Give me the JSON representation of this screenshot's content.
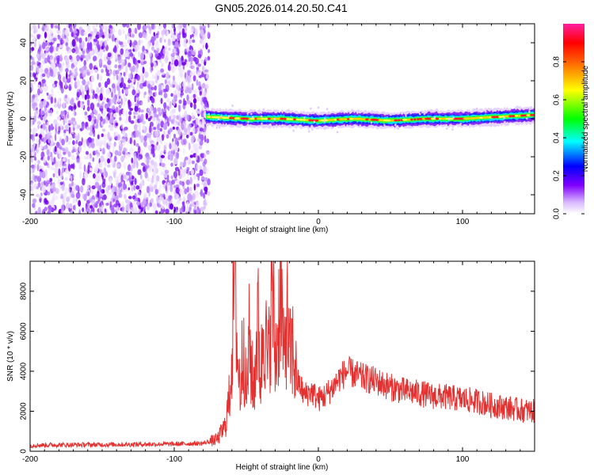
{
  "title": "GN05.2026.014.20.50.C41",
  "chart_data": [
    {
      "type": "heatmap",
      "xlabel": "Height of straight line (km)",
      "ylabel": "Frequency (Hz)",
      "xlim": [
        -200,
        150
      ],
      "ylim": [
        -50,
        50
      ],
      "xticks": [
        -200,
        -100,
        0,
        100
      ],
      "yticks": [
        -40,
        -20,
        0,
        20,
        40
      ],
      "colorbar": {
        "label": "Normalized spectral amplitude",
        "range": [
          0,
          1
        ],
        "ticks": [
          "0.0",
          "0.2",
          "0.4",
          "0.6",
          "0.8"
        ]
      },
      "noise_region_x": [
        -200,
        -76
      ],
      "signal_center_hz": [
        [
          -78,
          1
        ],
        [
          -50,
          0
        ],
        [
          -25,
          0
        ],
        [
          0,
          -1
        ],
        [
          25,
          0
        ],
        [
          50,
          -1
        ],
        [
          75,
          0
        ],
        [
          100,
          0
        ],
        [
          125,
          1
        ],
        [
          150,
          2
        ]
      ]
    },
    {
      "type": "line",
      "xlabel": "Height of straight line (km)",
      "ylabel": "SNR (10 * v/v)",
      "xlim": [
        -200,
        150
      ],
      "ylim": [
        0,
        9500
      ],
      "xticks": [
        -200,
        -100,
        0,
        100
      ],
      "yticks": [
        0,
        2000,
        4000,
        6000,
        8000
      ],
      "line_color": "#e53030",
      "series": [
        {
          "name": "SNR",
          "points": [
            [
              -200,
              300
            ],
            [
              -180,
              320
            ],
            [
              -150,
              330
            ],
            [
              -120,
              350
            ],
            [
              -100,
              360
            ],
            [
              -80,
              400
            ],
            [
              -70,
              600
            ],
            [
              -65,
              1200
            ],
            [
              -62,
              2500
            ],
            [
              -60,
              5000
            ],
            [
              -58,
              9500
            ],
            [
              -56,
              4500
            ],
            [
              -54,
              3000
            ],
            [
              -52,
              6000
            ],
            [
              -50,
              2500
            ],
            [
              -48,
              5500
            ],
            [
              -45,
              3000
            ],
            [
              -42,
              6500
            ],
            [
              -40,
              3500
            ],
            [
              -38,
              7000
            ],
            [
              -35,
              4000
            ],
            [
              -32,
              8800
            ],
            [
              -30,
              4500
            ],
            [
              -28,
              6000
            ],
            [
              -26,
              9000
            ],
            [
              -24,
              4000
            ],
            [
              -22,
              7000
            ],
            [
              -20,
              4500
            ],
            [
              -18,
              5200
            ],
            [
              -15,
              3500
            ],
            [
              -12,
              3200
            ],
            [
              -10,
              2800
            ],
            [
              -5,
              3000
            ],
            [
              0,
              2600
            ],
            [
              5,
              2800
            ],
            [
              10,
              3200
            ],
            [
              15,
              3700
            ],
            [
              20,
              4000
            ],
            [
              30,
              3700
            ],
            [
              40,
              3500
            ],
            [
              50,
              3200
            ],
            [
              60,
              3000
            ],
            [
              70,
              2900
            ],
            [
              80,
              2750
            ],
            [
              90,
              2700
            ],
            [
              100,
              2600
            ],
            [
              110,
              2500
            ],
            [
              120,
              2300
            ],
            [
              130,
              2200
            ],
            [
              140,
              2050
            ],
            [
              150,
              2000
            ]
          ]
        }
      ]
    }
  ]
}
